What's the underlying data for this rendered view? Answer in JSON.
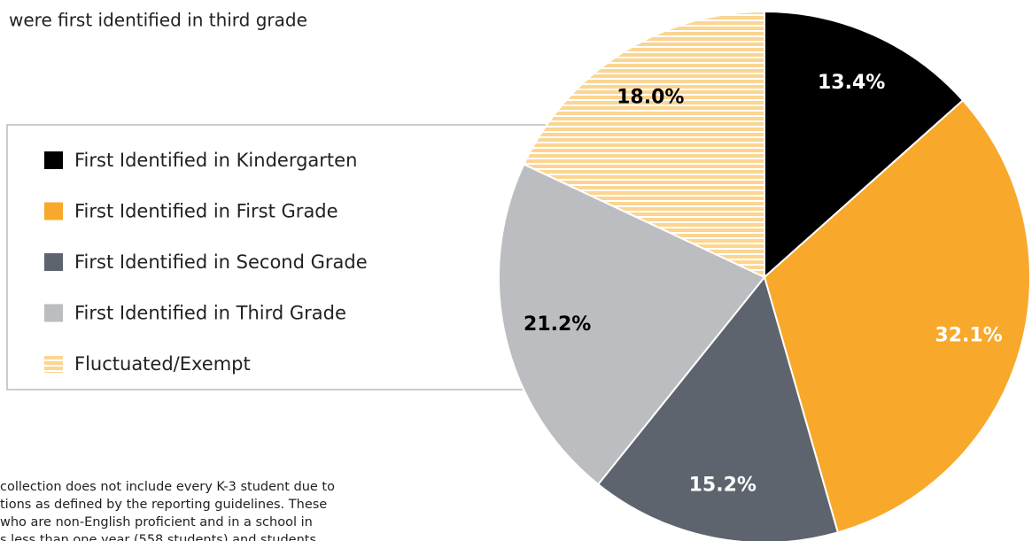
{
  "chart_data": {
    "type": "pie",
    "title": "were first identified in third grade",
    "categories": [
      "First Identified in Kindergarten",
      "First Identified in First Grade",
      "First Identified in Second Grade",
      "First Identified in Third Grade",
      "Fluctuated/Exempt"
    ],
    "values": [
      13.4,
      32.1,
      15.2,
      21.2,
      18.0
    ],
    "value_labels": [
      "13.4%",
      "32.1%",
      "15.2%",
      "21.2%",
      "18.0%"
    ],
    "colors": [
      "#000000",
      "#f8a82a",
      "#5e646e",
      "#bcbdc0",
      "#fcd592"
    ],
    "hatch": [
      "none",
      "none",
      "none",
      "none",
      "horizontal"
    ],
    "label_colors": [
      "#ffffff",
      "#ffffff",
      "#ffffff",
      "#000000",
      "#000000"
    ],
    "legend": "left",
    "notes": [
      "collection does not include every K-3 student due to",
      "tions as defined by the reporting guidelines. These",
      "who are non-English proficient and in a school in",
      "s less than one year (558 students) and students"
    ]
  }
}
